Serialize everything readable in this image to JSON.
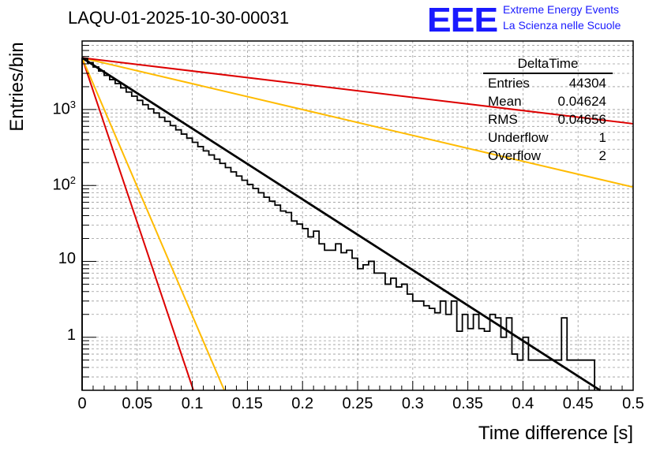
{
  "header": {
    "run_title": "LAQU-01-2025-10-30-00031",
    "logo": "EEE",
    "org_line1": "Extreme Energy Events",
    "org_line2": "La Scienza nelle Scuole",
    "brand_color": "#1a1aff"
  },
  "stats_box": {
    "title": "DeltaTime",
    "rows": [
      {
        "label": "Entries",
        "value": "44304"
      },
      {
        "label": "Mean",
        "value": "0.04624"
      },
      {
        "label": "RMS",
        "value": "0.04656"
      },
      {
        "label": "Underflow",
        "value": "1"
      },
      {
        "label": "Overflow",
        "value": "2"
      }
    ]
  },
  "chart_data": {
    "type": "line",
    "xlabel": "Time difference [s]",
    "ylabel": "Entries/bin",
    "yscale": "log",
    "xlim": [
      0,
      0.5
    ],
    "ylim": [
      0.2,
      8000
    ],
    "grid": true,
    "x_ticks": [
      "0",
      "0.05",
      "0.1",
      "0.15",
      "0.2",
      "0.25",
      "0.3",
      "0.35",
      "0.4",
      "0.45",
      "0.5"
    ],
    "y_ticks": [
      {
        "value": 1,
        "base": "1",
        "exp": ""
      },
      {
        "value": 10,
        "base": "10",
        "exp": ""
      },
      {
        "value": 100,
        "base": "10",
        "exp": "2"
      },
      {
        "value": 1000,
        "base": "10",
        "exp": "3"
      }
    ],
    "series": [
      {
        "name": "histogram",
        "color": "#000000",
        "x": [
          0.0,
          0.005,
          0.01,
          0.015,
          0.02,
          0.025,
          0.03,
          0.035,
          0.04,
          0.045,
          0.05,
          0.055,
          0.06,
          0.065,
          0.07,
          0.075,
          0.08,
          0.085,
          0.09,
          0.095,
          0.1,
          0.105,
          0.11,
          0.115,
          0.12,
          0.125,
          0.13,
          0.135,
          0.14,
          0.145,
          0.15,
          0.155,
          0.16,
          0.165,
          0.17,
          0.175,
          0.18,
          0.185,
          0.19,
          0.195,
          0.2,
          0.205,
          0.21,
          0.215,
          0.22,
          0.225,
          0.23,
          0.235,
          0.24,
          0.245,
          0.25,
          0.255,
          0.26,
          0.265,
          0.27,
          0.275,
          0.28,
          0.285,
          0.29,
          0.295,
          0.3,
          0.305,
          0.31,
          0.315,
          0.32,
          0.325,
          0.33,
          0.335,
          0.34,
          0.345,
          0.35,
          0.355,
          0.36,
          0.365,
          0.37,
          0.375,
          0.38,
          0.385,
          0.39,
          0.395,
          0.4,
          0.405,
          0.41,
          0.415,
          0.42,
          0.425,
          0.43,
          0.435,
          0.44,
          0.445,
          0.45,
          0.455,
          0.46
        ],
        "values": [
          4700,
          4150,
          3640,
          3220,
          2820,
          2480,
          2200,
          1930,
          1700,
          1500,
          1320,
          1160,
          1020,
          900,
          790,
          700,
          615,
          540,
          475,
          420,
          370,
          325,
          285,
          252,
          222,
          195,
          172,
          151,
          133,
          117,
          103,
          91,
          80,
          70,
          62,
          55,
          46,
          44,
          34,
          31,
          27,
          21,
          25,
          17,
          14,
          14,
          17,
          13,
          14,
          11,
          8,
          9,
          10,
          7,
          7,
          5,
          6,
          4.6,
          5,
          3.7,
          3,
          3,
          2.6,
          2.4,
          2.1,
          3,
          2,
          3,
          1.2,
          2,
          1.3,
          2,
          1.3,
          1.2,
          2,
          1.8,
          1,
          1.8,
          0.6,
          0.5,
          1,
          0.5,
          0.5,
          0.5,
          0.5,
          0.5,
          0.5,
          1.8,
          0.5,
          0.5,
          0.5,
          0.5,
          0.5
        ]
      },
      {
        "name": "fit",
        "color": "#000000",
        "x": [
          0.0,
          0.47
        ],
        "values": [
          4800,
          0.2
        ]
      },
      {
        "name": "red-steep",
        "color": "#dd0000",
        "x": [
          0.0,
          0.101
        ],
        "values": [
          4800,
          0.2
        ]
      },
      {
        "name": "yellow-steep",
        "color": "#ffbb00",
        "x": [
          0.0,
          0.129
        ],
        "values": [
          4800,
          0.2
        ]
      },
      {
        "name": "yellow-shallow",
        "color": "#ffbb00",
        "x": [
          0.0,
          0.5
        ],
        "values": [
          4800,
          95
        ]
      },
      {
        "name": "red-shallow",
        "color": "#dd0000",
        "x": [
          0.0,
          0.5
        ],
        "values": [
          4800,
          650
        ]
      }
    ]
  }
}
